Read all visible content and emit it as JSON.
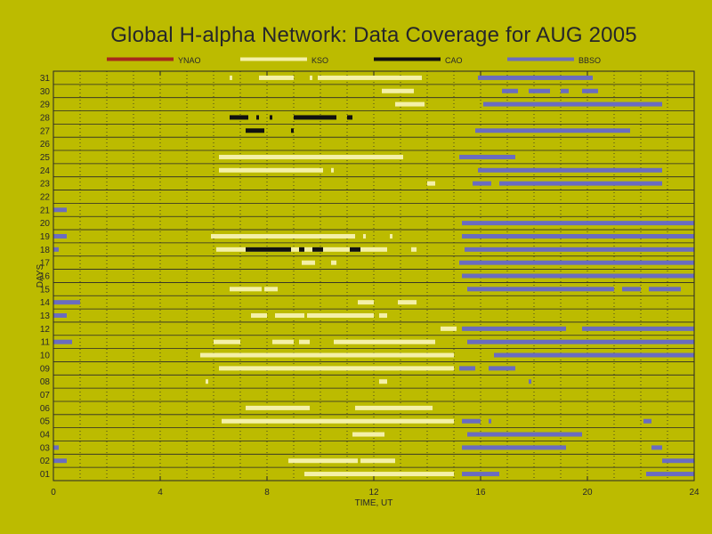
{
  "chart_data": {
    "type": "timeline",
    "title": "Global H-alpha Network: Data Coverage for AUG 2005",
    "xlabel": "TIME, UT",
    "ylabel": "DAYS",
    "xlim": [
      0,
      24
    ],
    "xticks": [
      0,
      4,
      8,
      12,
      16,
      20,
      24
    ],
    "days": [
      "01",
      "02",
      "03",
      "04",
      "05",
      "06",
      "07",
      "08",
      "09",
      "10",
      "11",
      "12",
      "13",
      "14",
      "15",
      "16",
      "17",
      "18",
      "19",
      "20",
      "21",
      "22",
      "23",
      "24",
      "25",
      "26",
      "27",
      "28",
      "29",
      "30",
      "31"
    ],
    "colors": {
      "background": "#bcbb00",
      "YNAO": "#a82a1c",
      "KSO": "#f4f0a8",
      "CAO": "#111111",
      "BBSO": "#6a6cc0"
    },
    "series": [
      {
        "name": "YNAO",
        "color": "#a82a1c",
        "segments": []
      },
      {
        "name": "KSO",
        "color": "#f4f0a8",
        "segments": [
          [
            1,
            9.4,
            15.0
          ],
          [
            2,
            8.8,
            11.4
          ],
          [
            2,
            11.5,
            12.8
          ],
          [
            5,
            6.3,
            15.0
          ],
          [
            6,
            7.2,
            9.6
          ],
          [
            6,
            11.3,
            14.2
          ],
          [
            4,
            11.2,
            12.4
          ],
          [
            8,
            5.7,
            5.8
          ],
          [
            8,
            12.2,
            12.5
          ],
          [
            9,
            6.2,
            15.0
          ],
          [
            10,
            5.5,
            15.0
          ],
          [
            11,
            6.0,
            7.0
          ],
          [
            11,
            8.2,
            9.0
          ],
          [
            11,
            9.2,
            9.6
          ],
          [
            11,
            10.5,
            14.3
          ],
          [
            12,
            14.5,
            15.1
          ],
          [
            13,
            7.4,
            8.0
          ],
          [
            13,
            8.3,
            9.4
          ],
          [
            13,
            9.5,
            12.0
          ],
          [
            13,
            12.2,
            12.5
          ],
          [
            14,
            11.4,
            12.0
          ],
          [
            14,
            12.9,
            13.6
          ],
          [
            15,
            6.6,
            7.8
          ],
          [
            15,
            7.9,
            8.4
          ],
          [
            17,
            9.3,
            9.8
          ],
          [
            17,
            10.4,
            10.6
          ],
          [
            18,
            6.1,
            12.5
          ],
          [
            18,
            13.4,
            13.6
          ],
          [
            19,
            5.9,
            11.3
          ],
          [
            19,
            11.6,
            11.7
          ],
          [
            19,
            12.6,
            12.7
          ],
          [
            23,
            14.0,
            14.3
          ],
          [
            24,
            6.2,
            10.1
          ],
          [
            24,
            10.4,
            10.5
          ],
          [
            25,
            6.2,
            13.1
          ],
          [
            29,
            12.8,
            13.9
          ],
          [
            30,
            12.3,
            13.5
          ],
          [
            31,
            6.6,
            6.7
          ],
          [
            31,
            7.7,
            9.0
          ],
          [
            31,
            9.6,
            9.7
          ],
          [
            31,
            9.9,
            13.8
          ]
        ]
      },
      {
        "name": "CAO",
        "color": "#111111",
        "segments": [
          [
            18,
            7.2,
            8.9
          ],
          [
            18,
            9.2,
            9.4
          ],
          [
            18,
            9.7,
            10.1
          ],
          [
            18,
            11.1,
            11.5
          ],
          [
            27,
            7.2,
            7.9
          ],
          [
            27,
            8.9,
            9.0
          ],
          [
            28,
            6.6,
            7.3
          ],
          [
            28,
            7.6,
            7.7
          ],
          [
            28,
            8.1,
            8.2
          ],
          [
            28,
            9.0,
            10.6
          ],
          [
            28,
            11.0,
            11.2
          ]
        ]
      },
      {
        "name": "BBSO",
        "color": "#6a6cc0",
        "segments": [
          [
            1,
            15.3,
            16.7
          ],
          [
            1,
            22.2,
            24.0
          ],
          [
            2,
            0.0,
            0.5
          ],
          [
            2,
            22.8,
            24.0
          ],
          [
            3,
            0.0,
            0.2
          ],
          [
            3,
            15.3,
            19.2
          ],
          [
            3,
            22.4,
            22.8
          ],
          [
            4,
            15.5,
            19.8
          ],
          [
            5,
            15.3,
            16.0
          ],
          [
            5,
            16.3,
            16.4
          ],
          [
            5,
            22.1,
            22.4
          ],
          [
            8,
            17.8,
            17.9
          ],
          [
            9,
            15.2,
            15.8
          ],
          [
            9,
            16.3,
            17.3
          ],
          [
            10,
            16.5,
            24.0
          ],
          [
            11,
            0.0,
            0.7
          ],
          [
            11,
            15.5,
            24.0
          ],
          [
            12,
            15.3,
            19.2
          ],
          [
            12,
            19.8,
            24.0
          ],
          [
            13,
            0.0,
            0.5
          ],
          [
            14,
            0.0,
            1.0
          ],
          [
            15,
            15.5,
            21.0
          ],
          [
            15,
            21.3,
            22.0
          ],
          [
            15,
            22.3,
            23.5
          ],
          [
            16,
            15.3,
            24.0
          ],
          [
            17,
            15.2,
            24.0
          ],
          [
            18,
            0.0,
            0.2
          ],
          [
            18,
            15.4,
            24.0
          ],
          [
            19,
            0.0,
            0.5
          ],
          [
            19,
            15.3,
            24.0
          ],
          [
            20,
            15.3,
            24.0
          ],
          [
            21,
            0.0,
            0.5
          ],
          [
            23,
            15.7,
            16.4
          ],
          [
            23,
            16.7,
            22.8
          ],
          [
            24,
            15.9,
            22.8
          ],
          [
            25,
            15.2,
            17.3
          ],
          [
            27,
            15.8,
            21.6
          ],
          [
            29,
            16.1,
            22.8
          ],
          [
            30,
            16.8,
            17.4
          ],
          [
            30,
            17.8,
            18.6
          ],
          [
            30,
            19.0,
            19.3
          ],
          [
            30,
            19.8,
            20.4
          ],
          [
            31,
            15.9,
            20.2
          ]
        ]
      }
    ],
    "grid": true,
    "legend": "top"
  }
}
